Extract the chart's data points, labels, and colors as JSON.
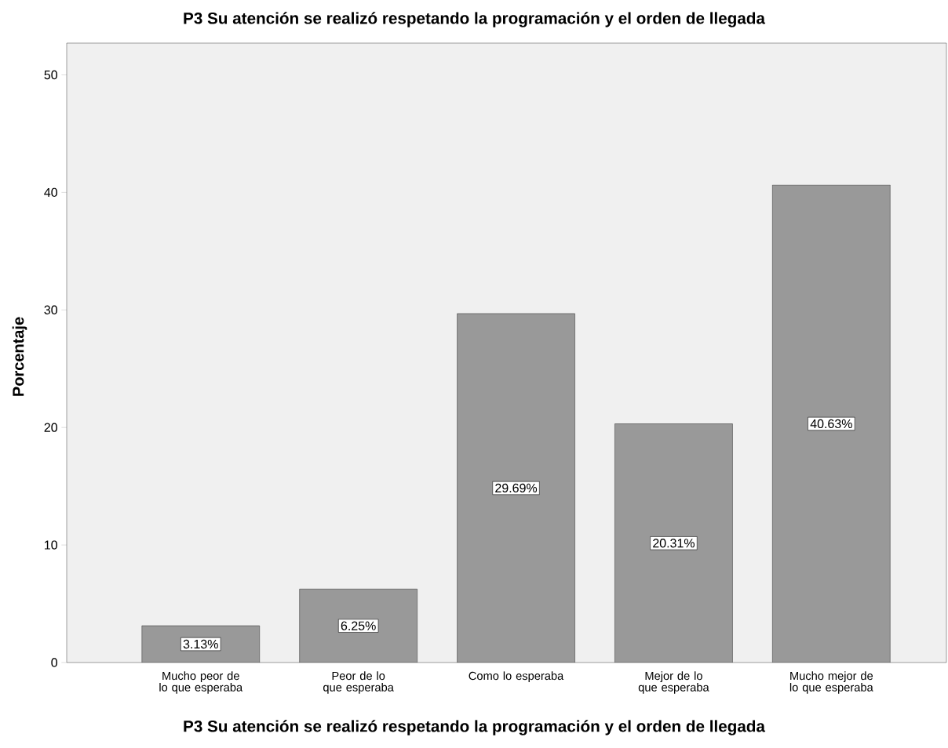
{
  "chart_data": {
    "type": "bar",
    "title": "P3 Su atención se realizó respetando la programación y el orden de llegada",
    "xlabel": "P3 Su atención se realizó respetando la programación y el orden de llegada",
    "ylabel": "Porcentaje",
    "categories": [
      "Mucho peor de lo que esperaba",
      "Peor de lo que esperaba",
      "Como lo esperaba",
      "Mejor de lo que esperaba",
      "Mucho mejor de lo que esperaba"
    ],
    "values": [
      3.13,
      6.25,
      29.69,
      20.31,
      40.63
    ],
    "value_labels": [
      "3.13%",
      "6.25%",
      "29.69%",
      "20.31%",
      "40.63%"
    ],
    "color": "#999999",
    "ylim": [
      0,
      52.7
    ],
    "yticks": [
      0,
      10,
      20,
      30,
      40,
      50
    ]
  }
}
